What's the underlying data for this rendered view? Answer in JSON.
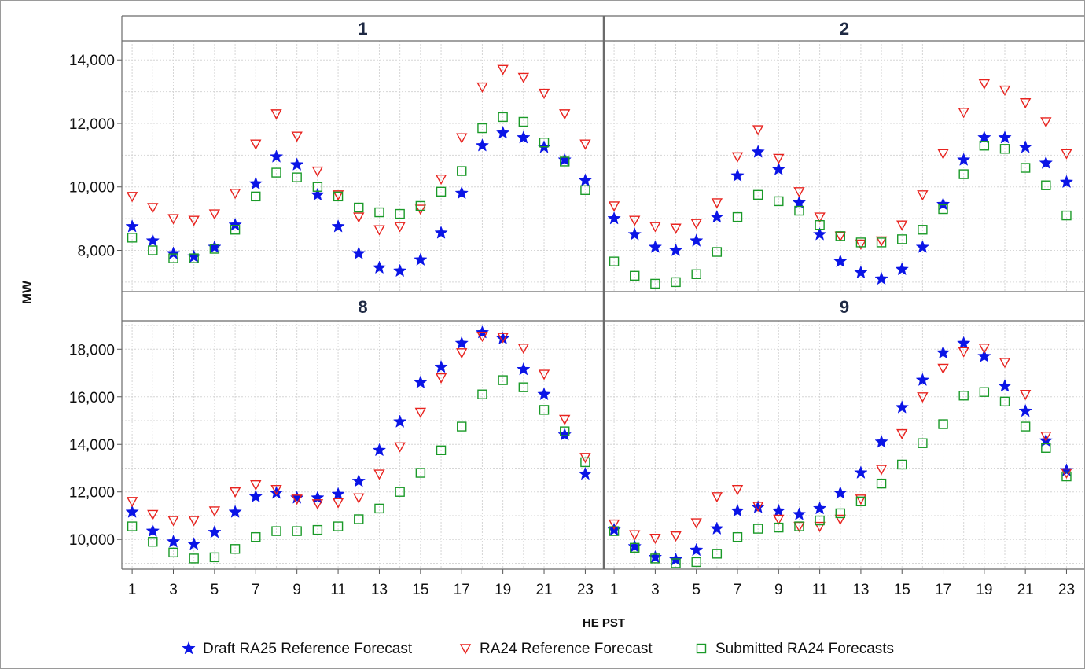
{
  "chart_data": {
    "type": "scatter",
    "xlabel": "HE PST",
    "ylabel": "MW",
    "x_ticks": [
      1,
      3,
      5,
      7,
      9,
      11,
      13,
      15,
      17,
      19,
      21,
      23
    ],
    "x_range": [
      0.5,
      23.9
    ],
    "series_styles": [
      {
        "name": "Draft RA25 Reference Forecast",
        "marker": "star",
        "color": "#0a14e6"
      },
      {
        "name": "RA24 Reference Forecast",
        "marker": "triangle-down",
        "color": "#e8231f"
      },
      {
        "name": "Submitted RA24 Forecasts",
        "marker": "square",
        "color": "#1a9a28"
      }
    ],
    "panels": [
      {
        "label": "1",
        "ylim": [
          6700,
          14600
        ],
        "y_ticks": [
          8000,
          10000,
          12000,
          14000
        ],
        "series": [
          {
            "name": "Draft RA25 Reference Forecast",
            "values": [
              8750,
              8300,
              7900,
              7800,
              8100,
              8800,
              10100,
              10950,
              10700,
              9750,
              8750,
              7900,
              7450,
              7350,
              7700,
              8550,
              9800,
              11300,
              11700,
              11550,
              11250,
              10850,
              10200
            ]
          },
          {
            "name": "RA24 Reference Forecast",
            "values": [
              9700,
              9350,
              9000,
              8950,
              9150,
              9800,
              11350,
              12300,
              11600,
              10500,
              9750,
              9050,
              8650,
              8750,
              9300,
              10250,
              11550,
              13150,
              13700,
              13450,
              12950,
              12300,
              11350
            ]
          },
          {
            "name": "Submitted RA24 Forecasts",
            "values": [
              8400,
              8000,
              7750,
              7750,
              8050,
              8650,
              9700,
              10450,
              10300,
              10000,
              9700,
              9350,
              9200,
              9150,
              9400,
              9850,
              10500,
              11850,
              12200,
              12050,
              11400,
              10800,
              9900
            ]
          }
        ]
      },
      {
        "label": "2",
        "ylim": [
          6700,
          14600
        ],
        "y_ticks": [
          8000,
          10000,
          12000,
          14000
        ],
        "series": [
          {
            "name": "Draft RA25 Reference Forecast",
            "values": [
              9000,
              8500,
              8100,
              8000,
              8300,
              9050,
              10350,
              11100,
              10550,
              9500,
              8500,
              7650,
              7300,
              7100,
              7400,
              8100,
              9450,
              10850,
              11550,
              11550,
              11250,
              10750,
              10150
            ]
          },
          {
            "name": "RA24 Reference Forecast",
            "values": [
              9400,
              8950,
              8750,
              8700,
              8850,
              9500,
              10950,
              11800,
              10900,
              9850,
              9050,
              8450,
              8200,
              8300,
              8800,
              9750,
              11050,
              12350,
              13250,
              13050,
              12650,
              12050,
              11050
            ]
          },
          {
            "name": "Submitted RA24 Forecasts",
            "values": [
              7650,
              7200,
              6950,
              7000,
              7250,
              7950,
              9050,
              9750,
              9550,
              9250,
              8800,
              8450,
              8250,
              8250,
              8350,
              8650,
              9300,
              10400,
              11300,
              11200,
              10600,
              10050,
              9100
            ]
          }
        ]
      },
      {
        "label": "8",
        "ylim": [
          8750,
          19200
        ],
        "y_ticks": [
          10000,
          12000,
          14000,
          16000,
          18000
        ],
        "series": [
          {
            "name": "Draft RA25 Reference Forecast",
            "values": [
              11150,
              10350,
              9900,
              9800,
              10300,
              11150,
              11800,
              11950,
              11750,
              11750,
              11900,
              12450,
              13750,
              14950,
              16600,
              17250,
              18250,
              18700,
              18450,
              17150,
              16100,
              14400,
              12750
            ]
          },
          {
            "name": "RA24 Reference Forecast",
            "values": [
              11600,
              11050,
              10800,
              10800,
              11200,
              12000,
              12300,
              12100,
              11700,
              11500,
              11550,
              11750,
              12750,
              13900,
              15350,
              16800,
              17850,
              18550,
              18500,
              18050,
              16950,
              15050,
              13450
            ]
          },
          {
            "name": "Submitted RA24 Forecasts",
            "values": [
              10550,
              9900,
              9450,
              9200,
              9250,
              9600,
              10100,
              10350,
              10350,
              10400,
              10550,
              10850,
              11300,
              12000,
              12800,
              13750,
              14750,
              16100,
              16700,
              16400,
              15450,
              14550,
              13250
            ]
          }
        ]
      },
      {
        "label": "9",
        "ylim": [
          8750,
          19200
        ],
        "y_ticks": [
          10000,
          12000,
          14000,
          16000,
          18000
        ],
        "series": [
          {
            "name": "Draft RA25 Reference Forecast",
            "values": [
              10400,
              9700,
              9250,
              9150,
              9550,
              10450,
              11200,
              11350,
              11200,
              11050,
              11300,
              11950,
              12800,
              14100,
              15550,
              16700,
              17850,
              18250,
              17700,
              16450,
              15400,
              14150,
              12900
            ]
          },
          {
            "name": "RA24 Reference Forecast",
            "values": [
              10650,
              10200,
              10050,
              10150,
              10700,
              11800,
              12100,
              11400,
              10850,
              10550,
              10550,
              10850,
              11700,
              12950,
              14450,
              16000,
              17200,
              17900,
              18050,
              17450,
              16100,
              14350,
              12800
            ]
          },
          {
            "name": "Submitted RA24 Forecasts",
            "values": [
              10350,
              9650,
              9200,
              9000,
              9050,
              9400,
              10100,
              10450,
              10500,
              10550,
              10800,
              11100,
              11600,
              12350,
              13150,
              14050,
              14850,
              16050,
              16200,
              15800,
              14750,
              13850,
              12650
            ]
          }
        ]
      }
    ]
  }
}
